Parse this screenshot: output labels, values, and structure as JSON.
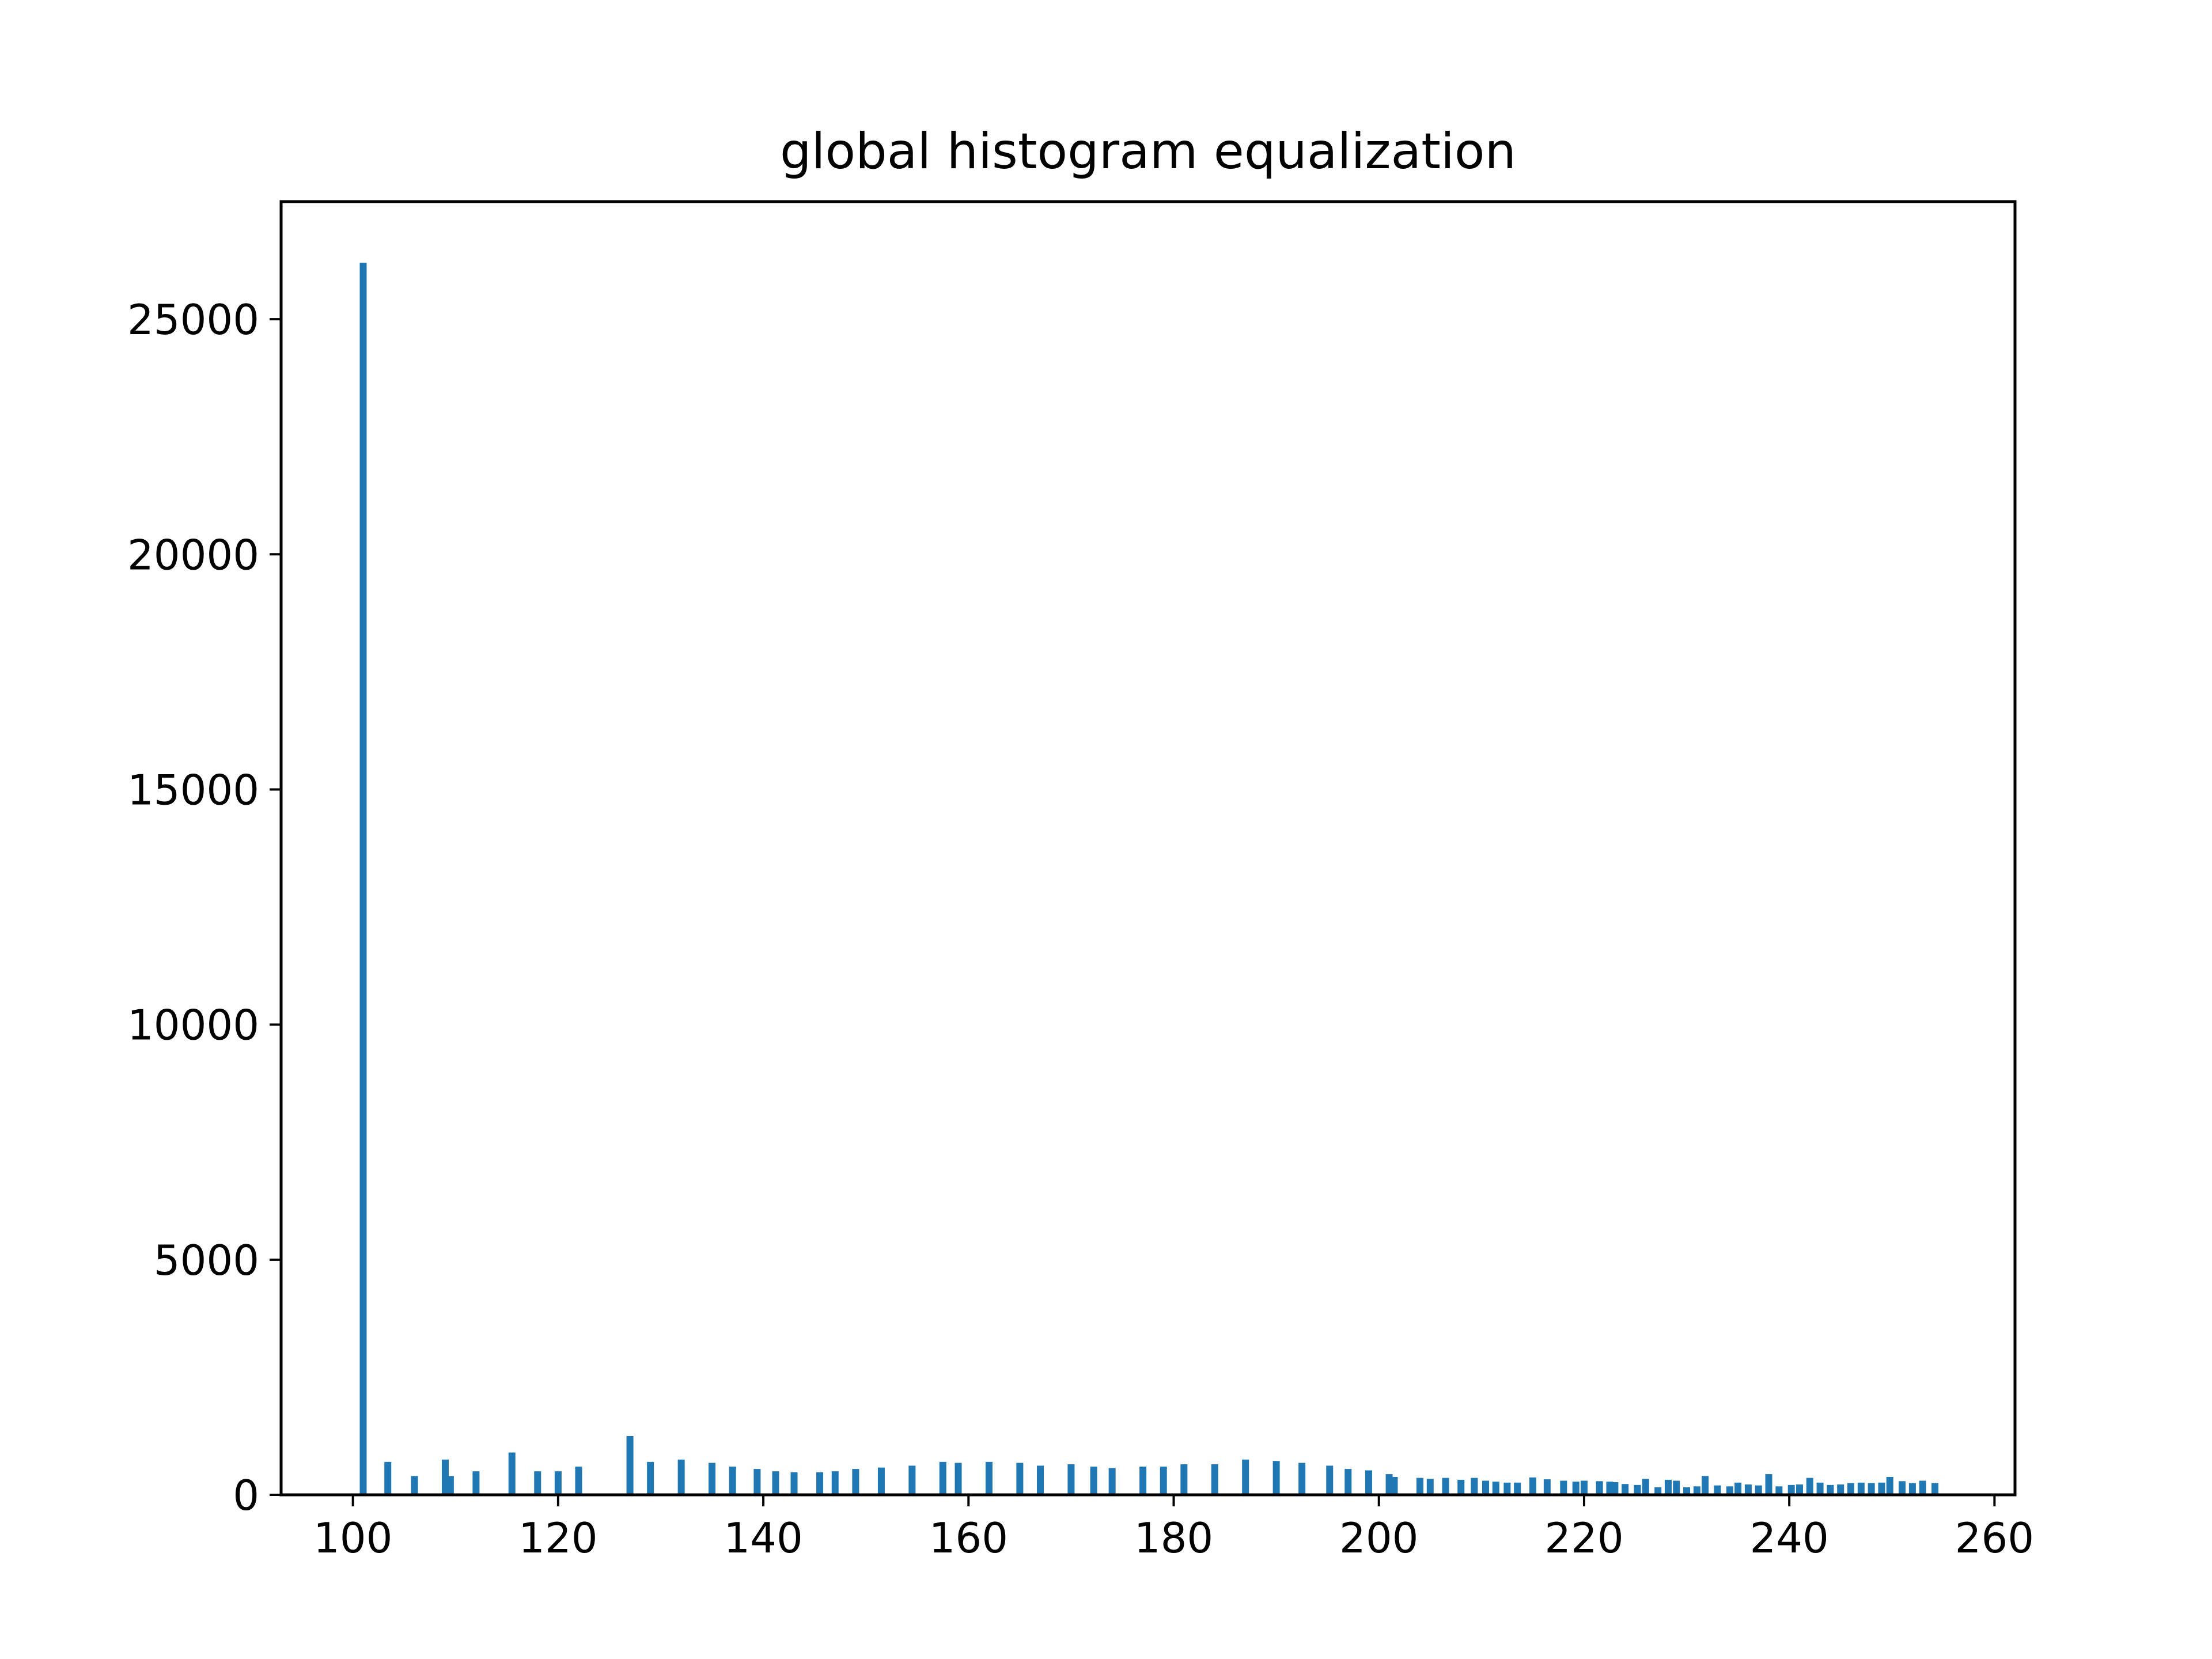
{
  "chart_data": {
    "type": "bar",
    "title": "global histogram equalization",
    "xlabel": "",
    "ylabel": "",
    "xlim": [
      93,
      262
    ],
    "ylim": [
      0,
      27500
    ],
    "grid": false,
    "legend": "none",
    "bar_color": "#1f77b4",
    "x_ticks": [
      100,
      120,
      140,
      160,
      180,
      200,
      220,
      240,
      260
    ],
    "y_ticks": [
      0,
      5000,
      10000,
      15000,
      20000,
      25000
    ],
    "x": [
      101,
      103.4,
      106,
      109,
      109.5,
      112,
      115.5,
      118,
      120,
      122,
      127,
      129,
      132,
      135,
      137,
      139.4,
      141.2,
      143,
      145.5,
      147,
      149,
      151.5,
      154.5,
      157.5,
      159,
      162,
      165,
      167,
      170,
      172.2,
      174,
      177,
      179,
      181,
      184,
      187,
      190,
      192.5,
      195.2,
      197,
      199,
      201,
      201.5,
      204,
      205,
      206.5,
      208,
      209.3,
      210.4,
      211.4,
      212.5,
      213.5,
      215,
      216.4,
      218,
      219.2,
      220,
      221.5,
      222.5,
      223,
      224,
      225.2,
      226,
      227.2,
      228.2,
      229,
      230,
      231,
      231.8,
      233,
      234.2,
      235,
      236,
      237,
      238,
      239,
      240.2,
      241,
      242,
      243,
      244,
      245,
      246,
      247,
      248,
      249,
      249.8,
      251,
      252,
      253,
      254.2
    ],
    "values": [
      26200,
      700,
      400,
      750,
      400,
      500,
      900,
      500,
      500,
      600,
      1250,
      700,
      750,
      680,
      600,
      550,
      500,
      480,
      480,
      500,
      550,
      580,
      620,
      700,
      680,
      700,
      680,
      620,
      650,
      600,
      570,
      600,
      600,
      650,
      650,
      750,
      720,
      680,
      620,
      550,
      520,
      440,
      380,
      360,
      340,
      360,
      320,
      360,
      300,
      280,
      260,
      260,
      370,
      330,
      300,
      280,
      300,
      290,
      280,
      270,
      230,
      210,
      340,
      160,
      320,
      300,
      160,
      180,
      400,
      200,
      180,
      260,
      220,
      200,
      440,
      180,
      210,
      220,
      360,
      260,
      210,
      220,
      250,
      260,
      250,
      260,
      380,
      290,
      250,
      300,
      250
    ]
  }
}
